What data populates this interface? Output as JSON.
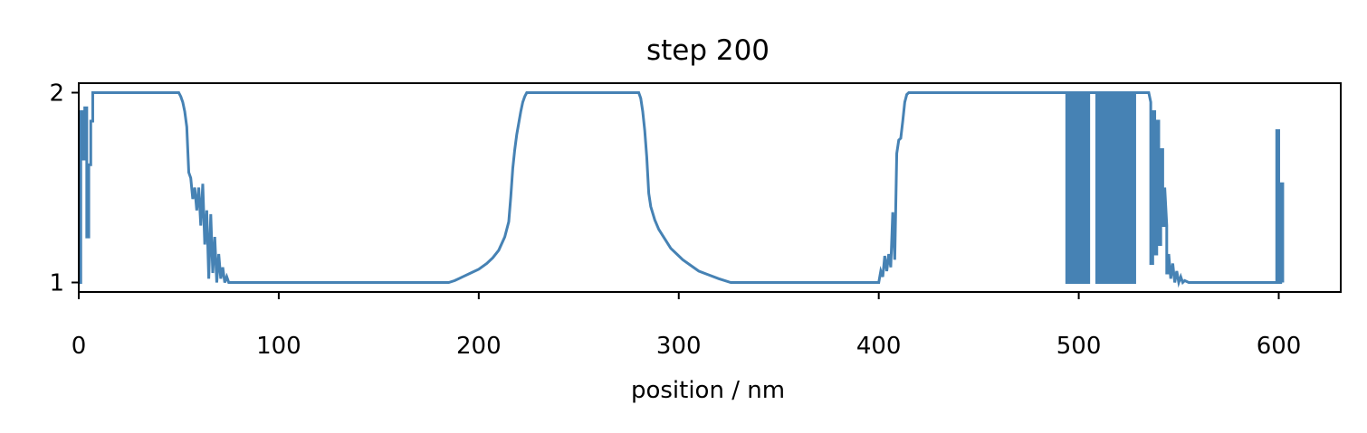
{
  "chart_data": {
    "type": "line",
    "title": "step 200",
    "xlabel": "position / nm",
    "ylabel": "",
    "xlim": [
      0,
      631
    ],
    "ylim": [
      0.95,
      2.05
    ],
    "xticks": [
      0,
      100,
      200,
      300,
      400,
      500,
      600
    ],
    "yticks": [
      1,
      2
    ],
    "grid": false,
    "line_color": "#4682b4",
    "series": [
      {
        "points": [
          [
            0,
            1
          ],
          [
            1,
            1
          ],
          [
            1,
            1.9
          ],
          [
            2,
            1.9
          ],
          [
            2,
            1.65
          ],
          [
            3,
            1.65
          ],
          [
            3,
            1.92
          ],
          [
            4,
            1.92
          ],
          [
            4,
            1.24
          ],
          [
            5,
            1.24
          ],
          [
            5,
            1.62
          ],
          [
            6,
            1.62
          ],
          [
            6,
            1.85
          ],
          [
            7,
            1.85
          ],
          [
            7,
            2
          ],
          [
            50,
            2
          ],
          [
            51,
            1.98
          ],
          [
            52,
            1.95
          ],
          [
            53,
            1.9
          ],
          [
            54,
            1.82
          ],
          [
            55,
            1.58
          ],
          [
            56,
            1.55
          ],
          [
            57,
            1.44
          ],
          [
            58,
            1.5
          ],
          [
            59,
            1.38
          ],
          [
            60,
            1.5
          ],
          [
            61,
            1.3
          ],
          [
            62,
            1.52
          ],
          [
            63,
            1.2
          ],
          [
            64,
            1.38
          ],
          [
            65,
            1.02
          ],
          [
            66,
            1.36
          ],
          [
            67,
            1.05
          ],
          [
            68,
            1.24
          ],
          [
            69,
            1.0
          ],
          [
            70,
            1.15
          ],
          [
            71,
            1.02
          ],
          [
            72,
            1.08
          ],
          [
            73,
            1.0
          ],
          [
            74,
            1.03
          ],
          [
            75,
            1.0
          ],
          [
            185,
            1.0
          ],
          [
            188,
            1.01
          ],
          [
            192,
            1.03
          ],
          [
            196,
            1.05
          ],
          [
            200,
            1.07
          ],
          [
            204,
            1.1
          ],
          [
            207,
            1.13
          ],
          [
            210,
            1.17
          ],
          [
            213,
            1.24
          ],
          [
            215,
            1.32
          ],
          [
            216,
            1.45
          ],
          [
            217,
            1.6
          ],
          [
            218,
            1.7
          ],
          [
            219,
            1.78
          ],
          [
            220,
            1.84
          ],
          [
            221,
            1.9
          ],
          [
            222,
            1.95
          ],
          [
            223,
            1.98
          ],
          [
            224,
            2
          ],
          [
            280,
            2
          ],
          [
            281,
            1.97
          ],
          [
            282,
            1.9
          ],
          [
            283,
            1.8
          ],
          [
            284,
            1.66
          ],
          [
            285,
            1.47
          ],
          [
            286,
            1.4
          ],
          [
            288,
            1.33
          ],
          [
            290,
            1.28
          ],
          [
            293,
            1.23
          ],
          [
            296,
            1.18
          ],
          [
            299,
            1.15
          ],
          [
            302,
            1.12
          ],
          [
            306,
            1.09
          ],
          [
            310,
            1.06
          ],
          [
            315,
            1.04
          ],
          [
            320,
            1.02
          ],
          [
            326,
            1.0
          ],
          [
            400,
            1.0
          ],
          [
            401,
            1.06
          ],
          [
            402,
            1.03
          ],
          [
            403,
            1.14
          ],
          [
            404,
            1.06
          ],
          [
            405,
            1.15
          ],
          [
            406,
            1.08
          ],
          [
            407,
            1.37
          ],
          [
            408,
            1.12
          ],
          [
            409,
            1.68
          ],
          [
            410,
            1.75
          ],
          [
            411,
            1.76
          ],
          [
            412,
            1.85
          ],
          [
            413,
            1.95
          ],
          [
            414,
            1.99
          ],
          [
            415,
            2
          ],
          [
            494,
            2
          ],
          [
            494,
            1
          ],
          [
            495,
            1
          ],
          [
            495,
            2
          ],
          [
            496,
            2
          ],
          [
            496,
            1
          ],
          [
            497,
            1
          ],
          [
            497,
            2
          ],
          [
            498,
            2
          ],
          [
            498,
            1
          ],
          [
            499,
            1
          ],
          [
            499,
            2
          ],
          [
            500,
            2
          ],
          [
            500,
            1
          ],
          [
            501,
            1
          ],
          [
            501,
            2
          ],
          [
            502,
            2
          ],
          [
            502,
            1
          ],
          [
            503,
            1
          ],
          [
            503,
            2
          ],
          [
            504,
            2
          ],
          [
            504,
            1
          ],
          [
            505,
            1
          ],
          [
            505,
            2
          ],
          [
            509,
            2
          ],
          [
            509,
            1
          ],
          [
            510,
            1
          ],
          [
            510,
            2
          ],
          [
            511,
            2
          ],
          [
            511,
            1
          ],
          [
            512,
            1
          ],
          [
            512,
            2
          ],
          [
            513,
            2
          ],
          [
            513,
            1
          ],
          [
            514,
            1
          ],
          [
            514,
            2
          ],
          [
            515,
            2
          ],
          [
            515,
            1
          ],
          [
            516,
            1
          ],
          [
            516,
            2
          ],
          [
            517,
            2
          ],
          [
            517,
            1
          ],
          [
            518,
            1
          ],
          [
            518,
            2
          ],
          [
            519,
            2
          ],
          [
            519,
            1
          ],
          [
            520,
            1
          ],
          [
            520,
            2
          ],
          [
            521,
            2
          ],
          [
            521,
            1
          ],
          [
            522,
            1
          ],
          [
            522,
            2
          ],
          [
            523,
            2
          ],
          [
            523,
            1
          ],
          [
            524,
            1
          ],
          [
            524,
            2
          ],
          [
            525,
            2
          ],
          [
            525,
            1
          ],
          [
            526,
            1
          ],
          [
            526,
            2
          ],
          [
            527,
            2
          ],
          [
            527,
            1
          ],
          [
            528,
            1
          ],
          [
            528,
            2
          ],
          [
            535,
            2
          ],
          [
            536,
            1.95
          ],
          [
            536,
            1.1
          ],
          [
            537,
            1.1
          ],
          [
            537,
            1.9
          ],
          [
            538,
            1.9
          ],
          [
            538,
            1.15
          ],
          [
            539,
            1.15
          ],
          [
            539,
            1.85
          ],
          [
            540,
            1.85
          ],
          [
            540,
            1.2
          ],
          [
            541,
            1.2
          ],
          [
            541,
            1.7
          ],
          [
            542,
            1.7
          ],
          [
            542,
            1.3
          ],
          [
            543,
            1.3
          ],
          [
            543,
            1.5
          ],
          [
            544,
            1.3
          ],
          [
            544,
            1.05
          ],
          [
            545,
            1.05
          ],
          [
            545,
            1.15
          ],
          [
            546,
            1.02
          ],
          [
            547,
            1.1
          ],
          [
            548,
            1.0
          ],
          [
            549,
            1.06
          ],
          [
            550,
            1.0
          ],
          [
            551,
            1.03
          ],
          [
            552,
            1.0
          ],
          [
            553,
            1.01
          ],
          [
            555,
            1.0
          ],
          [
            599,
            1.0
          ],
          [
            599,
            1.8
          ],
          [
            600,
            1.8
          ],
          [
            600,
            1.0
          ],
          [
            601,
            1.0
          ],
          [
            601,
            1.52
          ],
          [
            602,
            1.52
          ],
          [
            602,
            1.0
          ]
        ]
      }
    ]
  }
}
